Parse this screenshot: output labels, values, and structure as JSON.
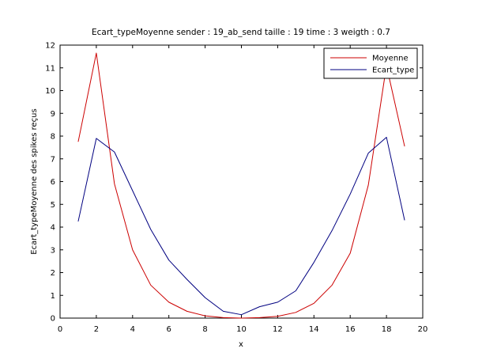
{
  "chart_data": {
    "type": "line",
    "title": "Ecart_typeMoyenne sender : 19_ab_send taille : 19 time : 3 weigth : 0.7",
    "xlabel": "x",
    "ylabel": "Ecart_typeMoyenne des spikes reçus",
    "xlim": [
      0,
      20
    ],
    "ylim": [
      0,
      12
    ],
    "xticks": [
      0,
      2,
      4,
      6,
      8,
      10,
      12,
      14,
      16,
      18,
      20
    ],
    "yticks": [
      0,
      1,
      2,
      3,
      4,
      5,
      6,
      7,
      8,
      9,
      10,
      11,
      12
    ],
    "grid": false,
    "legend_position": "top-right",
    "x": [
      1,
      2,
      3,
      4,
      5,
      6,
      7,
      8,
      9,
      10,
      11,
      12,
      13,
      14,
      15,
      16,
      17,
      18,
      19
    ],
    "series": [
      {
        "name": "Moyenne",
        "color": "#cc0000",
        "values": [
          7.75,
          11.65,
          5.9,
          3.0,
          1.45,
          0.7,
          0.3,
          0.1,
          0.02,
          0.0,
          0.02,
          0.08,
          0.25,
          0.65,
          1.45,
          2.85,
          5.85,
          11.1,
          7.55
        ]
      },
      {
        "name": "Ecart_type",
        "color": "#000080",
        "values": [
          4.25,
          7.9,
          7.3,
          5.6,
          3.9,
          2.55,
          1.7,
          0.9,
          0.3,
          0.15,
          0.5,
          0.7,
          1.2,
          2.45,
          3.85,
          5.45,
          7.25,
          7.95,
          4.3
        ]
      }
    ]
  }
}
